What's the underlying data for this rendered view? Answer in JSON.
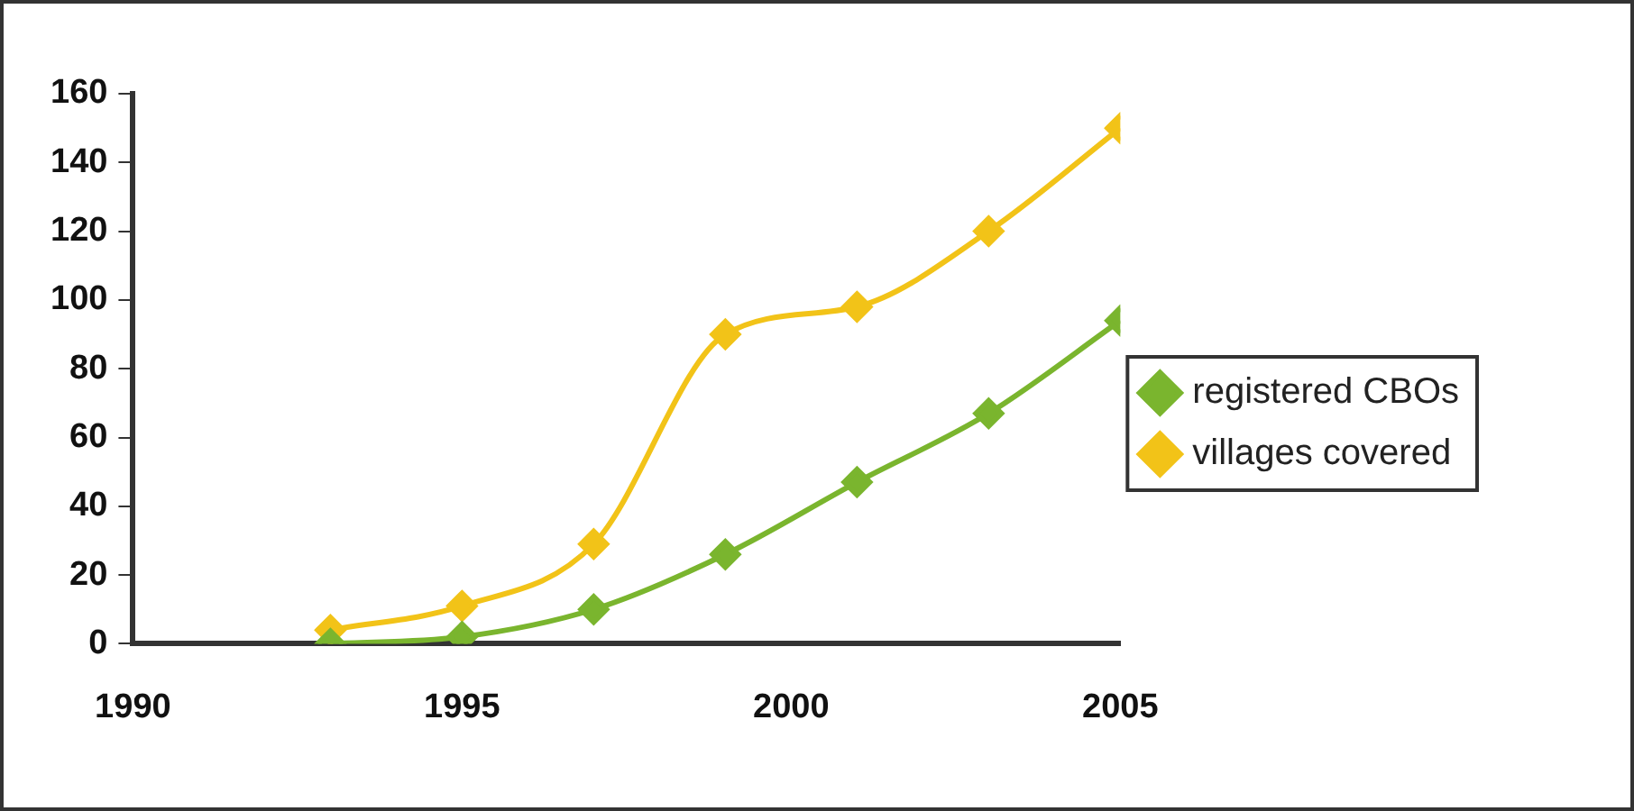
{
  "chart_data": {
    "type": "line",
    "x": [
      1993,
      1995,
      1997,
      1999,
      2001,
      2003,
      2005
    ],
    "series": [
      {
        "name": "registered CBOs",
        "color": "#7ab52e",
        "values": [
          0,
          2,
          10,
          26,
          47,
          67,
          94
        ]
      },
      {
        "name": "villages covered",
        "color": "#f2c318",
        "values": [
          4,
          11,
          29,
          90,
          98,
          120,
          150
        ]
      }
    ],
    "xlim": [
      1990,
      2005
    ],
    "xticks": [
      1990,
      1995,
      2000,
      2005
    ],
    "ylim": [
      0,
      160
    ],
    "yticks": [
      0,
      20,
      40,
      60,
      80,
      100,
      120,
      140,
      160
    ],
    "grid": false,
    "legend": "right",
    "marker": "diamond",
    "line_style": "solid"
  }
}
